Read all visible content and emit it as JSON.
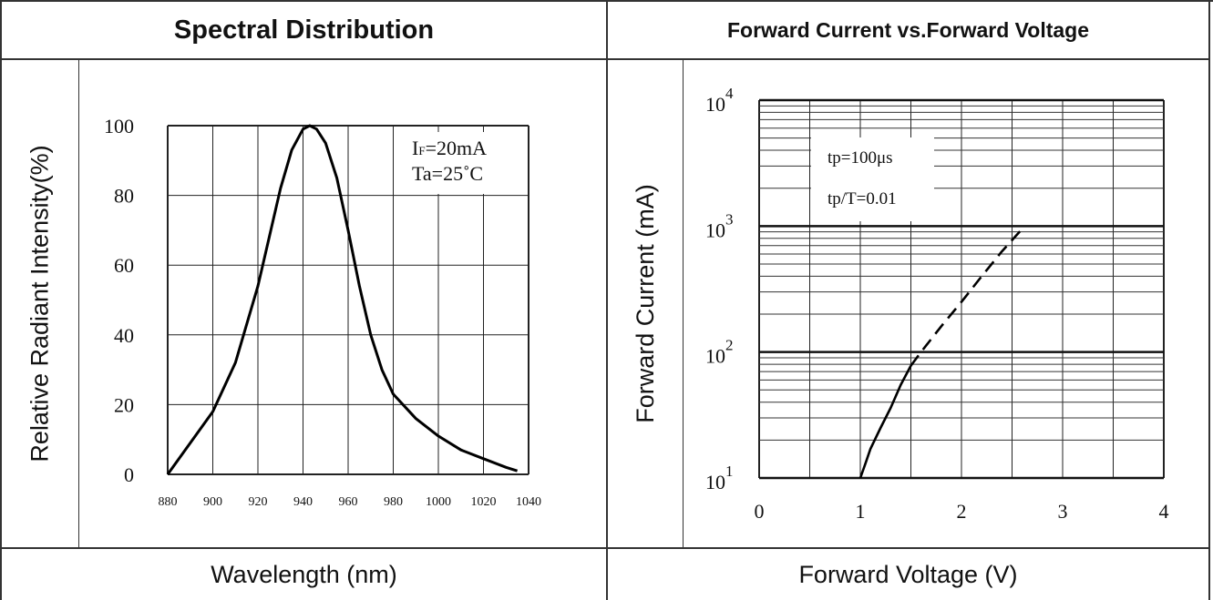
{
  "charts": {
    "left": {
      "header": "Spectral Distribution",
      "ylabel": "Relative Radiant Intensity(%)",
      "xlabel": "Wavelength (nm)",
      "annotation": [
        "IF=20mA",
        "Ta=25˚C"
      ],
      "annotation_subscript": "F"
    },
    "right": {
      "header": "Forward Current vs.Forward Voltage",
      "ylabel": "Forward Current (mA)",
      "xlabel": "Forward Voltage (V)",
      "annotation": [
        "tp=100μs",
        "tp/T=0.01"
      ]
    }
  },
  "chart_data": [
    {
      "type": "line",
      "title": "Spectral Distribution",
      "xlabel": "Wavelength (nm)",
      "ylabel": "Relative Radiant Intensity(%)",
      "xlim": [
        880,
        1040
      ],
      "ylim": [
        0,
        100
      ],
      "x_ticks": [
        880,
        900,
        920,
        940,
        960,
        980,
        1000,
        1020,
        1040
      ],
      "y_ticks": [
        0,
        20,
        40,
        60,
        80,
        100
      ],
      "grid": true,
      "annotations": [
        "IF=20mA",
        "Ta=25˚C"
      ],
      "series": [
        {
          "x": [
            880,
            890,
            900,
            910,
            920,
            925,
            930,
            935,
            940,
            943,
            946,
            950,
            955,
            960,
            965,
            970,
            975,
            980,
            990,
            1000,
            1010,
            1020,
            1030,
            1035
          ],
          "y": [
            0,
            9,
            18,
            32,
            54,
            68,
            82,
            93,
            99,
            100,
            99,
            95,
            85,
            70,
            54,
            40,
            30,
            23,
            16,
            11,
            7,
            4.5,
            2,
            1
          ]
        }
      ]
    },
    {
      "type": "line",
      "title": "Forward Current vs.Forward Voltage",
      "xlabel": "Forward Voltage (V)",
      "ylabel": "Forward Current (mA)",
      "xlim": [
        0,
        4
      ],
      "ylim": [
        10,
        10000
      ],
      "yscale": "log",
      "x_ticks": [
        0,
        1,
        2,
        3,
        4
      ],
      "y_ticks": [
        10,
        100,
        1000,
        10000
      ],
      "grid": true,
      "annotations": [
        "tp=100μs",
        "tp/T=0.01"
      ],
      "series": [
        {
          "style": "solid",
          "x": [
            1.0,
            1.05,
            1.1,
            1.2,
            1.3,
            1.4,
            1.5
          ],
          "y": [
            10,
            13,
            17,
            25,
            36,
            55,
            78
          ]
        },
        {
          "style": "dashed",
          "x": [
            1.5,
            1.6,
            1.8,
            2.0,
            2.2,
            2.4,
            2.6
          ],
          "y": [
            78,
            100,
            160,
            250,
            400,
            630,
            950
          ]
        }
      ]
    }
  ]
}
